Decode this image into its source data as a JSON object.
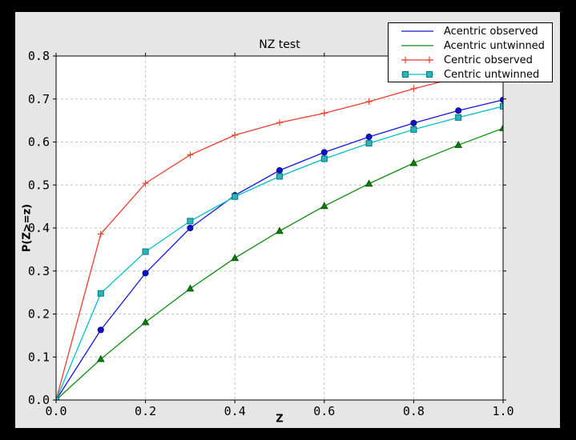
{
  "window": {
    "outer_background": "#000000",
    "figure_background": "#e6e6e6",
    "plot_background": "#ffffff",
    "axes_color": "#000000",
    "text_color": "#000000"
  },
  "chart_data": {
    "type": "line",
    "title": "NZ test",
    "xlabel": "Z",
    "ylabel": "P(Z>=z)",
    "xlim": [
      0.0,
      1.0
    ],
    "ylim": [
      0.0,
      0.8
    ],
    "grid": true,
    "grid_color": "#c4c4c4",
    "legend_position": "upper right",
    "x_ticks": [
      {
        "value": 0.0,
        "label": "0.0"
      },
      {
        "value": 0.2,
        "label": "0.2"
      },
      {
        "value": 0.4,
        "label": "0.4"
      },
      {
        "value": 0.6,
        "label": "0.6"
      },
      {
        "value": 0.8,
        "label": "0.8"
      },
      {
        "value": 1.0,
        "label": "1.0"
      }
    ],
    "y_ticks": [
      {
        "value": 0.0,
        "label": "0.0"
      },
      {
        "value": 0.1,
        "label": "0.1"
      },
      {
        "value": 0.2,
        "label": "0.2"
      },
      {
        "value": 0.3,
        "label": "0.3"
      },
      {
        "value": 0.4,
        "label": "0.4"
      },
      {
        "value": 0.5,
        "label": "0.5"
      },
      {
        "value": 0.6,
        "label": "0.6"
      },
      {
        "value": 0.7,
        "label": "0.7"
      },
      {
        "value": 0.8,
        "label": "0.8"
      }
    ],
    "x": [
      0.0,
      0.1,
      0.2,
      0.3,
      0.4,
      0.5,
      0.6,
      0.7,
      0.8,
      0.9,
      1.0
    ],
    "series": [
      {
        "name": "Acentric observed",
        "color": "#1616dd",
        "marker": "circle",
        "marker_fill": "#1111cc",
        "marker_edge": "#000082",
        "legend_sample_marker": "none",
        "values": [
          0.0,
          0.163,
          0.295,
          0.4,
          0.476,
          0.534,
          0.576,
          0.612,
          0.644,
          0.673,
          0.698
        ]
      },
      {
        "name": "Acentric untwinned",
        "color": "#0d8c0d",
        "marker": "triangle",
        "marker_fill": "#0b7d0b",
        "marker_edge": "#054d05",
        "legend_sample_marker": "none",
        "values": [
          0.0,
          0.095,
          0.181,
          0.259,
          0.33,
          0.393,
          0.451,
          0.503,
          0.551,
          0.593,
          0.632
        ]
      },
      {
        "name": "Centric observed",
        "color": "#ef3d2e",
        "marker": "plus",
        "marker_fill": "#ef3d2e",
        "marker_edge": "#ef3d2e",
        "legend_sample_marker": "plus",
        "values": [
          0.0,
          0.386,
          0.504,
          0.57,
          0.616,
          0.645,
          0.667,
          0.694,
          0.724,
          0.75,
          0.773
        ]
      },
      {
        "name": "Centric untwinned",
        "color": "#00c0c6",
        "marker": "square",
        "marker_fill": "#2cb5bd",
        "marker_edge": "#00777c",
        "legend_sample_marker": "square",
        "values": [
          0.0,
          0.248,
          0.345,
          0.416,
          0.473,
          0.52,
          0.561,
          0.597,
          0.629,
          0.657,
          0.683
        ]
      }
    ]
  }
}
